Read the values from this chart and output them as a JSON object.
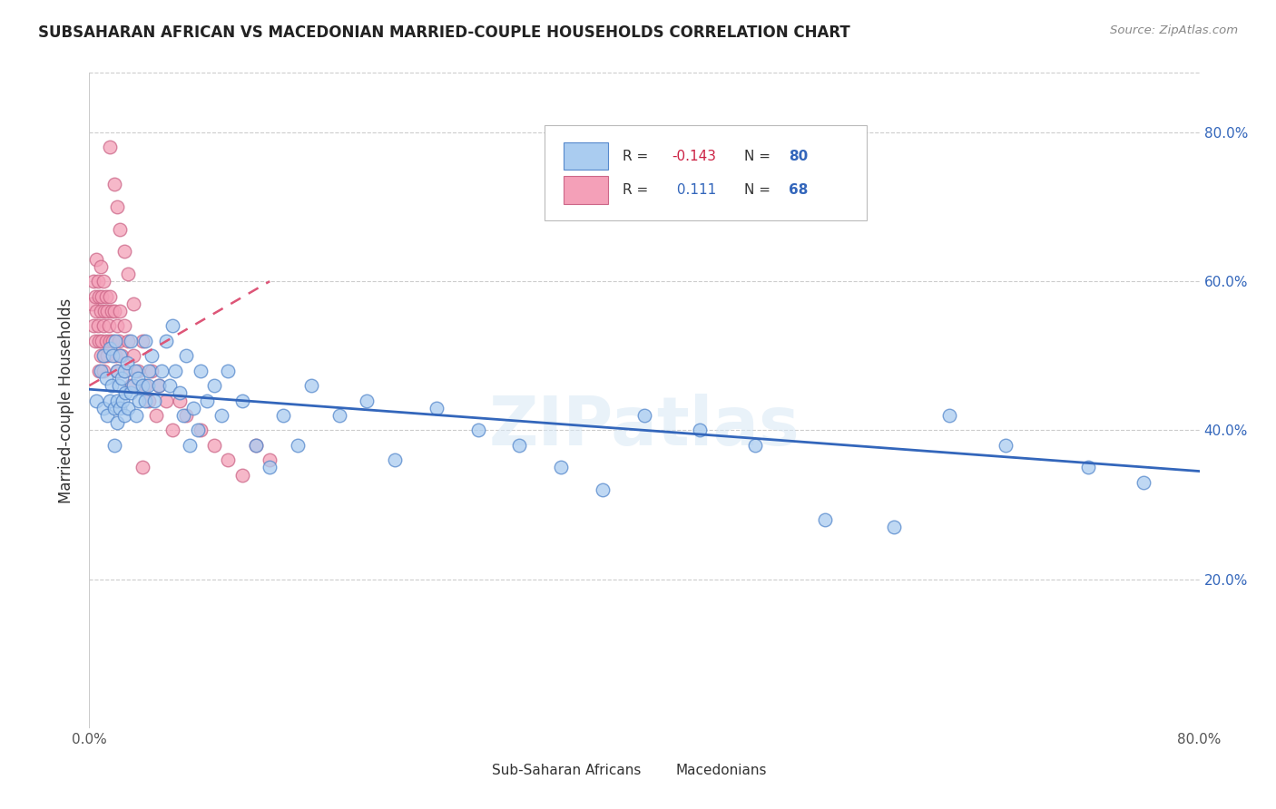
{
  "title": "SUBSAHARAN AFRICAN VS MACEDONIAN MARRIED-COUPLE HOUSEHOLDS CORRELATION CHART",
  "source": "Source: ZipAtlas.com",
  "ylabel": "Married-couple Households",
  "ytick_vals": [
    0.2,
    0.4,
    0.6,
    0.8
  ],
  "ytick_labels": [
    "20.0%",
    "40.0%",
    "60.0%",
    "80.0%"
  ],
  "xlim": [
    0.0,
    0.8
  ],
  "ylim": [
    0.0,
    0.88
  ],
  "legend_blue_label": "Sub-Saharan Africans",
  "legend_pink_label": "Macedonians",
  "blue_color": "#aaccf0",
  "pink_color": "#f4a0b8",
  "blue_edge_color": "#5588cc",
  "pink_edge_color": "#cc6688",
  "blue_line_color": "#3366bb",
  "pink_line_color": "#dd5577",
  "watermark": "ZIPatlas",
  "blue_scatter_x": [
    0.005,
    0.008,
    0.01,
    0.01,
    0.012,
    0.013,
    0.015,
    0.015,
    0.016,
    0.017,
    0.018,
    0.018,
    0.019,
    0.02,
    0.02,
    0.02,
    0.021,
    0.022,
    0.022,
    0.023,
    0.024,
    0.025,
    0.025,
    0.026,
    0.027,
    0.028,
    0.03,
    0.03,
    0.032,
    0.033,
    0.034,
    0.035,
    0.036,
    0.038,
    0.04,
    0.04,
    0.042,
    0.043,
    0.045,
    0.047,
    0.05,
    0.052,
    0.055,
    0.058,
    0.06,
    0.062,
    0.065,
    0.068,
    0.07,
    0.072,
    0.075,
    0.078,
    0.08,
    0.085,
    0.09,
    0.095,
    0.1,
    0.11,
    0.12,
    0.13,
    0.14,
    0.15,
    0.16,
    0.18,
    0.2,
    0.22,
    0.25,
    0.28,
    0.31,
    0.34,
    0.37,
    0.4,
    0.44,
    0.48,
    0.53,
    0.58,
    0.62,
    0.66,
    0.72,
    0.76
  ],
  "blue_scatter_y": [
    0.44,
    0.48,
    0.43,
    0.5,
    0.47,
    0.42,
    0.51,
    0.44,
    0.46,
    0.5,
    0.43,
    0.38,
    0.52,
    0.48,
    0.44,
    0.41,
    0.46,
    0.5,
    0.43,
    0.47,
    0.44,
    0.48,
    0.42,
    0.45,
    0.49,
    0.43,
    0.52,
    0.45,
    0.46,
    0.48,
    0.42,
    0.47,
    0.44,
    0.46,
    0.52,
    0.44,
    0.46,
    0.48,
    0.5,
    0.44,
    0.46,
    0.48,
    0.52,
    0.46,
    0.54,
    0.48,
    0.45,
    0.42,
    0.5,
    0.38,
    0.43,
    0.4,
    0.48,
    0.44,
    0.46,
    0.42,
    0.48,
    0.44,
    0.38,
    0.35,
    0.42,
    0.38,
    0.46,
    0.42,
    0.44,
    0.36,
    0.43,
    0.4,
    0.38,
    0.35,
    0.32,
    0.42,
    0.4,
    0.38,
    0.28,
    0.27,
    0.42,
    0.38,
    0.35,
    0.33
  ],
  "pink_scatter_x": [
    0.002,
    0.003,
    0.003,
    0.004,
    0.004,
    0.005,
    0.005,
    0.006,
    0.006,
    0.007,
    0.007,
    0.007,
    0.008,
    0.008,
    0.008,
    0.009,
    0.009,
    0.01,
    0.01,
    0.01,
    0.011,
    0.011,
    0.012,
    0.012,
    0.013,
    0.013,
    0.014,
    0.015,
    0.015,
    0.016,
    0.017,
    0.018,
    0.019,
    0.02,
    0.02,
    0.021,
    0.022,
    0.023,
    0.025,
    0.026,
    0.028,
    0.03,
    0.032,
    0.035,
    0.038,
    0.04,
    0.043,
    0.045,
    0.048,
    0.05,
    0.055,
    0.06,
    0.065,
    0.07,
    0.08,
    0.09,
    0.1,
    0.11,
    0.12,
    0.13,
    0.015,
    0.018,
    0.02,
    0.022,
    0.025,
    0.028,
    0.032,
    0.038
  ],
  "pink_scatter_y": [
    0.57,
    0.6,
    0.54,
    0.58,
    0.52,
    0.63,
    0.56,
    0.6,
    0.54,
    0.58,
    0.52,
    0.48,
    0.62,
    0.56,
    0.5,
    0.58,
    0.52,
    0.6,
    0.54,
    0.48,
    0.56,
    0.5,
    0.58,
    0.52,
    0.56,
    0.5,
    0.54,
    0.58,
    0.52,
    0.56,
    0.52,
    0.56,
    0.5,
    0.54,
    0.48,
    0.52,
    0.56,
    0.5,
    0.54,
    0.48,
    0.52,
    0.46,
    0.5,
    0.48,
    0.52,
    0.46,
    0.44,
    0.48,
    0.42,
    0.46,
    0.44,
    0.4,
    0.44,
    0.42,
    0.4,
    0.38,
    0.36,
    0.34,
    0.38,
    0.36,
    0.78,
    0.73,
    0.7,
    0.67,
    0.64,
    0.61,
    0.57,
    0.35
  ],
  "blue_line_x": [
    0.0,
    0.8
  ],
  "blue_line_y": [
    0.455,
    0.345
  ],
  "pink_line_x": [
    0.0,
    0.13
  ],
  "pink_line_y": [
    0.46,
    0.6
  ]
}
